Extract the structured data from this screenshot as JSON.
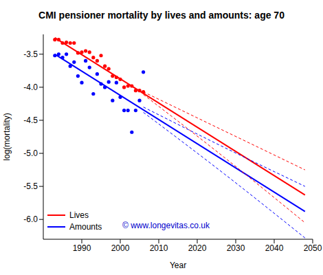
{
  "chart_data": {
    "type": "line",
    "title": "CMI pensioner mortality by lives and amounts: age 70",
    "x_label": "Year",
    "y_label": "log(mortality)",
    "xlim": [
      1980,
      2050
    ],
    "xticks": [
      1990,
      2000,
      2010,
      2020,
      2030,
      2040,
      2050
    ],
    "ylim": [
      -6.3,
      -3.2
    ],
    "yticks": [
      -3.5,
      {
        "value": -4,
        "label": "-4.0"
      },
      -4.5,
      {
        "value": -5,
        "label": "-5.0"
      },
      -5.5,
      {
        "value": -6,
        "label": "-6.0"
      }
    ],
    "grid": false,
    "legend": "bottom-left",
    "annotations": [
      "© www.longevitas.co.uk"
    ],
    "series": [
      {
        "name": "Lives",
        "color": "#ff0000",
        "type": "scatter",
        "marker": "circle",
        "x": [
          1983,
          1984,
          1985,
          1986,
          1987,
          1988,
          1989,
          1990,
          1991,
          1992,
          1993,
          1994,
          1995,
          1996,
          1997,
          1998,
          1999,
          2000,
          2001,
          2002,
          2003,
          2004,
          2005,
          2006
        ],
        "values": [
          -3.28,
          -3.28,
          -3.33,
          -3.32,
          -3.33,
          -3.33,
          -3.48,
          -3.47,
          -3.45,
          -3.47,
          -3.55,
          -3.6,
          -3.52,
          -3.68,
          -3.72,
          -3.83,
          -3.85,
          -3.88,
          -4.0,
          -3.98,
          -3.98,
          -4.05,
          -4.05,
          -4.07
        ]
      },
      {
        "name": "Amounts",
        "color": "#0000ff",
        "type": "scatter",
        "marker": "circle",
        "x": [
          1983,
          1984,
          1985,
          1986,
          1987,
          1988,
          1989,
          1990,
          1991,
          1992,
          1993,
          1994,
          1995,
          1996,
          1997,
          1998,
          1999,
          2000,
          2001,
          2002,
          2003,
          2004,
          2005,
          2006
        ],
        "values": [
          -3.52,
          -3.5,
          -3.55,
          -3.5,
          -3.68,
          -3.62,
          -3.83,
          -3.93,
          -3.6,
          -3.7,
          -4.1,
          -3.8,
          -3.95,
          -4.0,
          -3.92,
          -4.2,
          -3.93,
          -4.15,
          -4.35,
          -4.35,
          -4.68,
          -4.35,
          -4.2,
          -3.77
        ]
      },
      {
        "name": "Lives",
        "color": "#ff0000",
        "type": "line",
        "line_style": "solid",
        "x": [
          1983,
          2048
        ],
        "values": [
          -3.25,
          -5.63
        ]
      },
      {
        "name": "Amounts",
        "color": "#0000ff",
        "type": "line",
        "line_style": "solid",
        "x": [
          1983,
          2048
        ],
        "values": [
          -3.5,
          -5.88
        ]
      },
      {
        "name": "Lives",
        "color": "#ff0000",
        "type": "line",
        "line_style": "dashed",
        "x": [
          2006,
          2027,
          2048
        ],
        "values": [
          -4.07,
          -4.66,
          -5.25
        ]
      },
      {
        "name": "Lives",
        "color": "#ff0000",
        "type": "line",
        "line_style": "dashed",
        "x": [
          2006,
          2027,
          2048
        ],
        "values": [
          -4.11,
          -5.06,
          -6.05
        ]
      },
      {
        "name": "Amounts",
        "color": "#0000ff",
        "type": "line",
        "line_style": "dashed",
        "x": [
          2006,
          2027,
          2048
        ],
        "values": [
          -4.3,
          -4.91,
          -5.5
        ]
      },
      {
        "name": "Amounts",
        "color": "#0000ff",
        "type": "line",
        "line_style": "dashed",
        "x": [
          2006,
          2027,
          2048
        ],
        "values": [
          -4.38,
          -5.31,
          -6.28
        ]
      }
    ]
  }
}
